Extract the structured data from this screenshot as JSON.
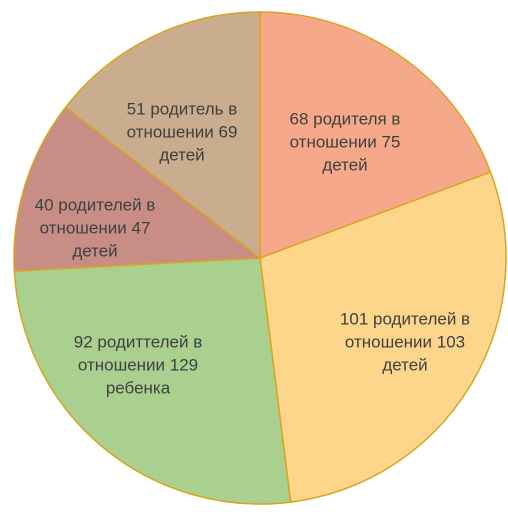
{
  "chart_data": {
    "type": "pie",
    "categories": [
      "68 родителя в отношении 75 детей",
      "101 родителей в отношении 103 детей",
      "92 родиттелей в отношении 129 ребенка",
      "40 родителей в отношении 47 детей",
      "51 родитель в отношении 69 детей"
    ],
    "values": [
      68,
      101,
      92,
      40,
      51
    ],
    "colors": [
      "#f5a98a",
      "#fdd68c",
      "#a9d08e",
      "#c88e86",
      "#c9ad8e"
    ]
  }
}
